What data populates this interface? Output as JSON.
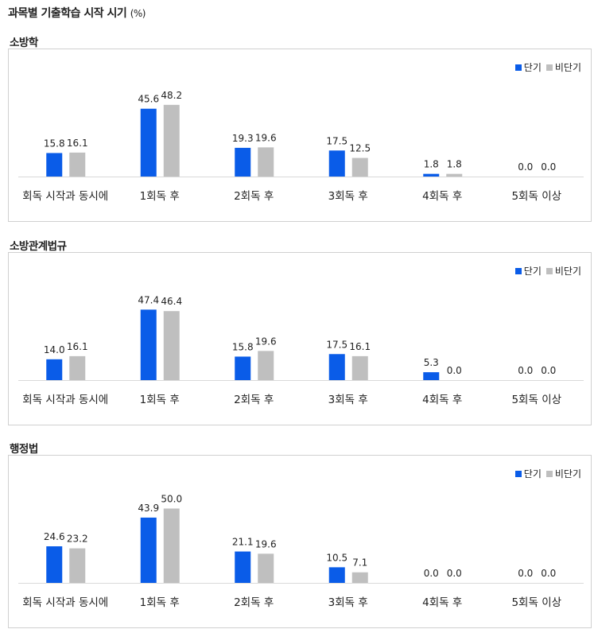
{
  "title": "과목별 기출학습 시작 시기",
  "unit": "(%)",
  "colors": {
    "short": "#0a5ce8",
    "long": "#bfbfbf"
  },
  "legend": {
    "short": "단기",
    "long": "비단기"
  },
  "chart_data": [
    {
      "type": "bar",
      "title": "소방학",
      "categories": [
        "회독 시작과 동시에",
        "1회독 후",
        "2회독 후",
        "3회독 후",
        "4회독 후",
        "5회독 이상"
      ],
      "series": [
        {
          "name": "단기",
          "values": [
            15.8,
            45.6,
            19.3,
            17.5,
            1.8,
            0.0
          ]
        },
        {
          "name": "비단기",
          "values": [
            16.1,
            48.2,
            19.6,
            12.5,
            1.8,
            0.0
          ]
        }
      ],
      "ylim": [
        0,
        50
      ],
      "grid": false,
      "legend_position": "top-right"
    },
    {
      "type": "bar",
      "title": "소방관계법규",
      "categories": [
        "회독 시작과 동시에",
        "1회독 후",
        "2회독 후",
        "3회독 후",
        "4회독 후",
        "5회독 이상"
      ],
      "series": [
        {
          "name": "단기",
          "values": [
            14.0,
            47.4,
            15.8,
            17.5,
            5.3,
            0.0
          ]
        },
        {
          "name": "비단기",
          "values": [
            16.1,
            46.4,
            19.6,
            16.1,
            0.0,
            0.0
          ]
        }
      ],
      "ylim": [
        0,
        50
      ],
      "grid": false,
      "legend_position": "top-right"
    },
    {
      "type": "bar",
      "title": "행정법",
      "categories": [
        "회독 시작과 동시에",
        "1회독 후",
        "2회독 후",
        "3회독 후",
        "4회독 후",
        "5회독 이상"
      ],
      "series": [
        {
          "name": "단기",
          "values": [
            24.6,
            43.9,
            21.1,
            10.5,
            0.0,
            0.0
          ]
        },
        {
          "name": "비단기",
          "values": [
            23.2,
            50.0,
            19.6,
            7.1,
            0.0,
            0.0
          ]
        }
      ],
      "ylim": [
        0,
        50
      ],
      "grid": false,
      "legend_position": "top-right"
    }
  ]
}
